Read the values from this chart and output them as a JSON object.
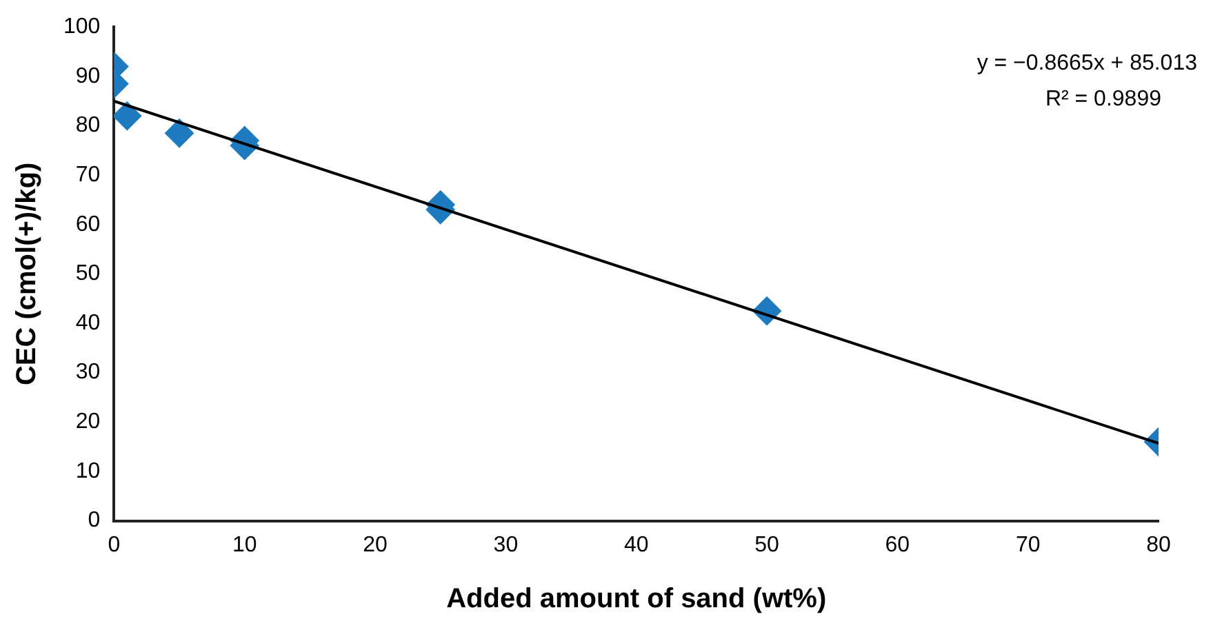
{
  "chart_data": {
    "type": "scatter",
    "xlabel": "Added amount of sand (wt%)",
    "ylabel": "CEC (cmol(+)/kg)",
    "x": [
      0,
      0,
      1,
      5,
      10,
      10,
      25,
      25,
      50,
      80
    ],
    "series": [
      {
        "color": "#1f7bbf",
        "marker": "diamond",
        "values": [
          92,
          88.5,
          82,
          78.5,
          77,
          76,
          64,
          63,
          42.5,
          16
        ]
      },
      {
        "type": "line",
        "color": "#000000",
        "marker": "none",
        "x": [
          0,
          80
        ],
        "values": [
          85,
          15.7
        ]
      }
    ],
    "annotations": [
      "y = −0.8665x + 85.013",
      "R² = 0.9899"
    ],
    "xlim": [
      0,
      80
    ],
    "xticks": [
      0,
      10,
      20,
      30,
      40,
      50,
      60,
      70,
      80
    ],
    "ylim": [
      0,
      100
    ],
    "yticks": [
      0,
      10,
      20,
      30,
      40,
      50,
      60,
      70,
      80,
      90,
      100
    ],
    "grid": false,
    "legend": false
  }
}
